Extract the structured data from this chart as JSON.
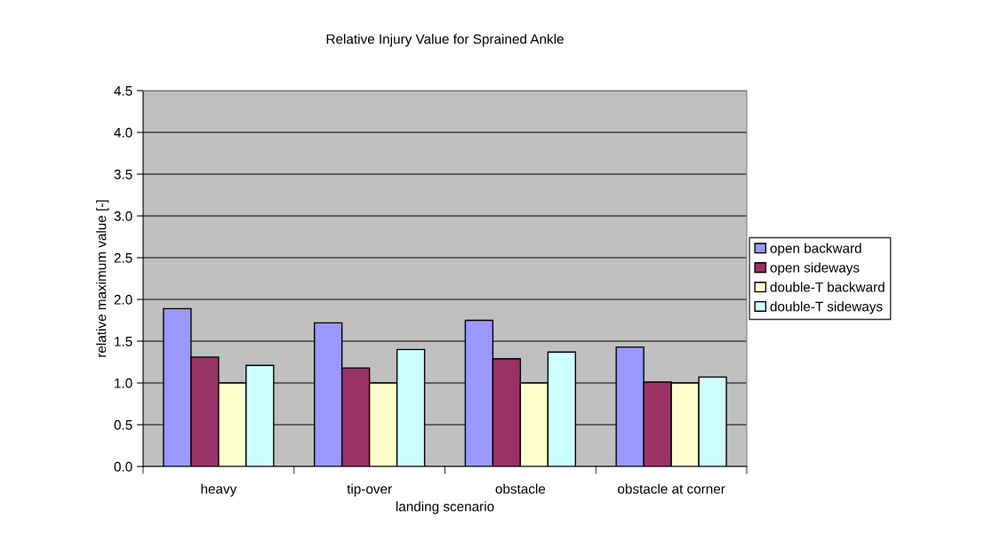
{
  "chart_data": {
    "type": "bar",
    "title": "Relative Injury Value for Sprained Ankle",
    "xlabel": "landing scenario",
    "ylabel": "relative maximum value [-]",
    "categories": [
      "heavy",
      "tip-over",
      "obstacle",
      "obstacle at corner"
    ],
    "series": [
      {
        "name": "open backward",
        "color": "#9999ff",
        "values": [
          1.89,
          1.72,
          1.75,
          1.43
        ]
      },
      {
        "name": "open sideways",
        "color": "#993366",
        "values": [
          1.31,
          1.18,
          1.29,
          1.01
        ]
      },
      {
        "name": "double-T backward",
        "color": "#ffffcc",
        "values": [
          1.0,
          1.0,
          1.0,
          1.0
        ]
      },
      {
        "name": "double-T sideways",
        "color": "#ccffff",
        "values": [
          1.21,
          1.4,
          1.37,
          1.07
        ]
      }
    ],
    "ylim": [
      0,
      4.5
    ],
    "yticks": [
      {
        "value": 0,
        "label": "0.0"
      },
      {
        "value": 0.5,
        "label": "0.5"
      },
      {
        "value": 1,
        "label": "1.0"
      },
      {
        "value": 1.5,
        "label": "1.5"
      },
      {
        "value": 2,
        "label": "2.0"
      },
      {
        "value": 2.5,
        "label": "2.5"
      },
      {
        "value": 3,
        "label": "3.0"
      },
      {
        "value": 3.5,
        "label": "3.5"
      },
      {
        "value": 4,
        "label": "4.0"
      },
      {
        "value": 4.5,
        "label": "4.5"
      }
    ],
    "grid": "y",
    "legend": "right"
  }
}
